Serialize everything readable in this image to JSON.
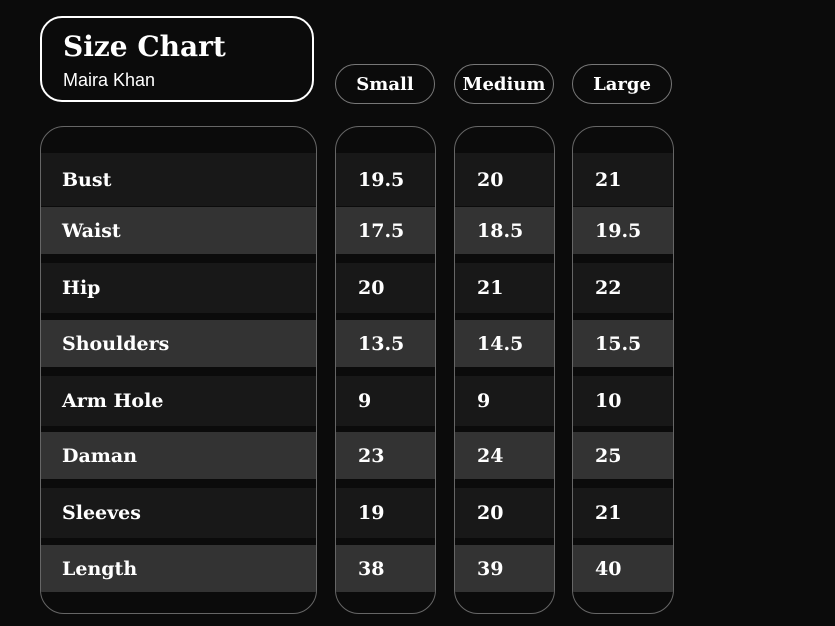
{
  "header": {
    "title": "Size Chart",
    "subtitle": "Maira Khan"
  },
  "sizes": [
    "Small",
    "Medium",
    "Large"
  ],
  "measurements": [
    "Bust",
    "Waist",
    "Hip",
    "Shoulders",
    "Arm Hole",
    "Daman",
    "Sleeves",
    "Length"
  ],
  "values": {
    "Small": [
      "19.5",
      "17.5",
      "20",
      "13.5",
      "9",
      "23",
      "19",
      "38"
    ],
    "Medium": [
      "20",
      "18.5",
      "21",
      "14.5",
      "9",
      "24",
      "20",
      "39"
    ],
    "Large": [
      "21",
      "19.5",
      "22",
      "15.5",
      "10",
      "25",
      "21",
      "40"
    ]
  },
  "colors": {
    "background": "#0b0b0b",
    "row_dark": "#181818",
    "row_light": "#333333",
    "text": "#ffffff"
  }
}
